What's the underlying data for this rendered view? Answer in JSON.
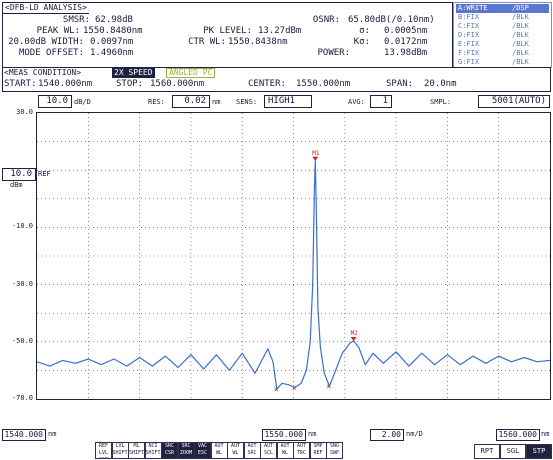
{
  "header": {
    "title": "<DFB-LD ANALYSIS>",
    "smsr_label": "SMSR:",
    "smsr_value": "62.98dB",
    "osnr_label": "OSNR:",
    "osnr_value": "65.80dB(/0.10nm)",
    "peak_wl_label": "PEAK WL:",
    "peak_wl_value": "1550.8480nm",
    "pk_level_label": "PK LEVEL:",
    "pk_level_value": "13.27dBm",
    "sigma_label": "σ:",
    "sigma_value": "0.0005nm",
    "width_label": "20.00dB WIDTH:",
    "width_value": "0.0097nm",
    "ctr_wl_label": "CTR WL:",
    "ctr_wl_value": "1550.8438nm",
    "k_label": "Kσ:",
    "k_value": "0.0172nm",
    "mode_offset_label": "MODE OFFSET:",
    "mode_offset_value": "1.4960nm",
    "power_label": "POWER:",
    "power_value": "13.98dBm"
  },
  "traces": [
    {
      "name": "A:WRITE",
      "state": "/DSP"
    },
    {
      "name": "B:FIX",
      "state": "/BLK"
    },
    {
      "name": "C:FIX",
      "state": "/BLK"
    },
    {
      "name": "D:FIX",
      "state": "/BLK"
    },
    {
      "name": "E:FIX",
      "state": "/BLK"
    },
    {
      "name": "F:FIX",
      "state": "/BLK"
    },
    {
      "name": "G:FIX",
      "state": "/BLK"
    }
  ],
  "meas": {
    "label": "<MEAS CONDITION>",
    "start_label": "START:",
    "start_value": "1540.000nm",
    "stop_label": "STOP:",
    "stop_value": "1560.000nm",
    "center_label": "CENTER:",
    "center_value": "1550.000nm",
    "span_label": "SPAN:",
    "span_value": "20.0nm",
    "tag_2x": "2X SPEED",
    "tag_angled": "ANGLED PC"
  },
  "settings": {
    "scale_value": "10.0",
    "scale_unit": "dB/D",
    "res_label": "RES:",
    "res_value": "0.02",
    "res_unit": "nm",
    "sens_label": "SENS:",
    "sens_value": "HIGH1",
    "avg_label": "AVG:",
    "avg_value": "1",
    "smpl_label": "SMPL:",
    "smpl_value": "5001(AUTO)"
  },
  "ref": {
    "value": "10.0",
    "label": "REF",
    "unit": "dBm"
  },
  "chart_data": {
    "type": "line",
    "xlabel": "",
    "ylabel": "",
    "xlim": [
      1540.0,
      1560.0
    ],
    "ylim": [
      -70.0,
      30.0
    ],
    "y_ticks": [
      "30.0",
      "10.0",
      "-10.0",
      "-30.0",
      "-50.0",
      "-70.0"
    ],
    "grid": true,
    "series": [
      {
        "x": [
          1540.0,
          1540.5,
          1541.0,
          1541.5,
          1542.0,
          1542.5,
          1543.0,
          1543.5,
          1544.0,
          1544.5,
          1545.0,
          1545.5,
          1546.0,
          1546.5,
          1547.0,
          1547.5,
          1548.0,
          1548.5,
          1549.0,
          1549.2,
          1549.35,
          1549.55,
          1549.8,
          1550.05,
          1550.3,
          1550.5,
          1550.65,
          1550.75,
          1550.82,
          1550.848,
          1550.88,
          1550.95,
          1551.05,
          1551.2,
          1551.4,
          1551.6,
          1551.9,
          1552.2,
          1552.344,
          1552.55,
          1552.8,
          1553.1,
          1553.5,
          1554.0,
          1554.5,
          1555.0,
          1555.5,
          1556.0,
          1556.5,
          1557.0,
          1557.5,
          1558.0,
          1558.5,
          1559.0,
          1559.5,
          1560.0
        ],
        "y": [
          -57.0,
          -58.5,
          -56.5,
          -57.5,
          -56.0,
          -58.0,
          -56.0,
          -58.5,
          -55.5,
          -58.5,
          -55.0,
          -59.0,
          -54.5,
          -59.5,
          -54.5,
          -60.0,
          -54.0,
          -61.0,
          -52.5,
          -57.0,
          -66.5,
          -64.5,
          -65.0,
          -66.0,
          -64.5,
          -60.0,
          -50.0,
          -30.0,
          5.0,
          13.3,
          0.0,
          -38.0,
          -52.0,
          -61.0,
          -65.5,
          -61.0,
          -54.0,
          -50.5,
          -49.7,
          -52.0,
          -58.0,
          -54.0,
          -57.5,
          -53.5,
          -58.5,
          -54.0,
          -58.0,
          -54.5,
          -58.0,
          -55.0,
          -57.5,
          -55.0,
          -57.0,
          -55.5,
          -57.0,
          -56.5
        ]
      }
    ],
    "markers": [
      {
        "label": "M1",
        "x": 1550.848,
        "y": 13.3
      },
      {
        "label": "M2",
        "x": 1552.344,
        "y": -49.7
      }
    ],
    "footer": {
      "start": "1540.000",
      "start_unit": "nm",
      "center": "1550.000",
      "center_unit": "nm",
      "div": "2.00",
      "div_unit": "nm/D",
      "stop": "1560.000",
      "stop_unit": "nm"
    }
  },
  "soft_keys": [
    "REF LVL CSR",
    "LVL SHIFT",
    "ML SHIFT",
    "NCI SHIFT",
    "SRC CSR",
    "SRC ZOOM",
    "VAC ESC",
    "AUT WL",
    "AUT WL",
    "AUT SRC",
    "AUT SCL",
    "AUT WL",
    "AUT TRC",
    "SMP REF",
    "SNG SWP"
  ],
  "sweep_buttons": [
    "RPT",
    "SGL",
    "STP"
  ],
  "colors": {
    "trace": "#3a6fd0",
    "marker": "#d02020",
    "grid": "#404060"
  }
}
